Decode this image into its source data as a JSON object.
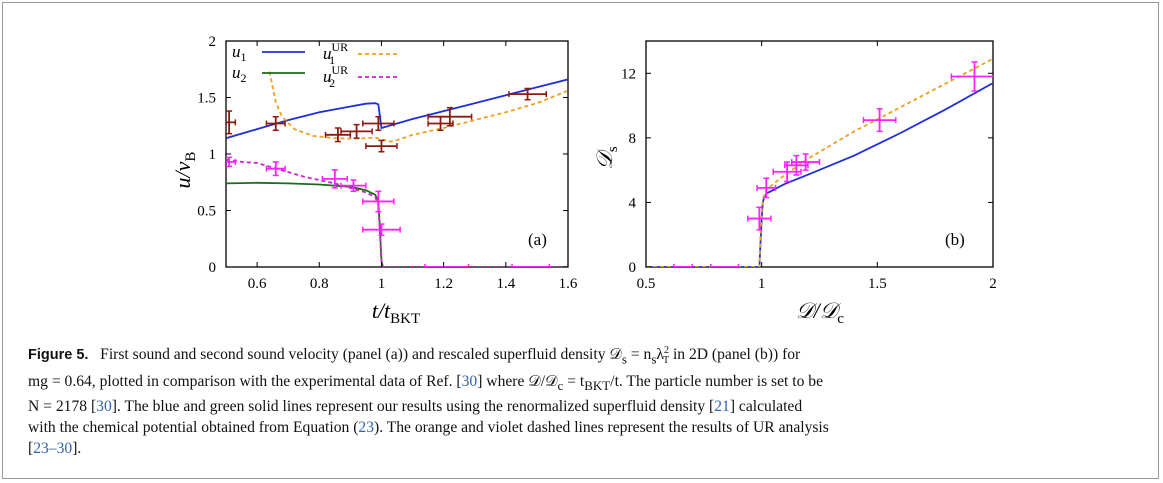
{
  "caption": {
    "figure_label": "Figure 5.",
    "line1_a": "First sound and second sound velocity (panel (a)) and rescaled superfluid density 𝒟",
    "line1_sub": "s",
    "line1_b": " = n",
    "line1_c": "λ",
    "line1_sup": "2",
    "line1_sub2": "T",
    "line1_d": " in 2D (panel (b)) for",
    "line2_a": "mg = 0.64, plotted in comparison with the experimental data of Ref. [",
    "ref30a": "30",
    "line2_b": "] where 𝒟/𝒟",
    "line2_c": " = t",
    "line2_sub": "BKT",
    "line2_d": "/t. The particle number is set to be",
    "line3_a": "N = 2178 [",
    "ref30b": "30",
    "line3_b": "]. The blue and green solid lines represent our results using the renormalized superfluid density [",
    "ref21": "21",
    "line3_c": "] calculated",
    "line4_a": "with the chemical potential obtained from Equation (",
    "ref23": "23",
    "line4_b": "). The orange and violet dashed lines represent the results of UR analysis",
    "line5_a": "[",
    "ref2330": "23–30",
    "line5_b": "]."
  },
  "colors": {
    "blue": "#1f2fd8",
    "green": "#1a6e1a",
    "orange": "#f0a020",
    "violet": "#d020d0",
    "darkred": "#8b1a10",
    "magenta": "#ff22ff"
  },
  "chart_data": [
    {
      "panel": "(a)",
      "type": "line",
      "xlabel": "t/t_BKT",
      "ylabel": "u/v_B",
      "xlim": [
        0.5,
        1.6
      ],
      "ylim": [
        0,
        2
      ],
      "xticks": [
        "0.6",
        "0.8",
        "1",
        "1.2",
        "1.4",
        "1.6"
      ],
      "yticks": [
        "0",
        "0.5",
        "1",
        "1.5",
        "2"
      ],
      "legend": [
        {
          "name": "u1",
          "style": "solid",
          "color": "blue"
        },
        {
          "name": "u2",
          "style": "solid",
          "color": "green"
        },
        {
          "name": "u1^UR",
          "style": "dashed",
          "color": "orange"
        },
        {
          "name": "u2^UR",
          "style": "dashed",
          "color": "violet"
        }
      ],
      "series": [
        {
          "name": "u1",
          "color": "blue",
          "dash": false,
          "points": [
            [
              0.5,
              1.14
            ],
            [
              0.6,
              1.22
            ],
            [
              0.7,
              1.3
            ],
            [
              0.8,
              1.37
            ],
            [
              0.9,
              1.42
            ],
            [
              0.95,
              1.445
            ],
            [
              0.98,
              1.45
            ],
            [
              0.99,
              1.44
            ],
            [
              1.0,
              1.23
            ],
            [
              1.1,
              1.31
            ],
            [
              1.2,
              1.38
            ],
            [
              1.3,
              1.45
            ],
            [
              1.4,
              1.52
            ],
            [
              1.5,
              1.59
            ],
            [
              1.6,
              1.66
            ]
          ]
        },
        {
          "name": "u2",
          "color": "green",
          "dash": false,
          "points": [
            [
              0.5,
              0.74
            ],
            [
              0.6,
              0.745
            ],
            [
              0.7,
              0.74
            ],
            [
              0.8,
              0.73
            ],
            [
              0.9,
              0.71
            ],
            [
              0.95,
              0.68
            ],
            [
              0.98,
              0.64
            ],
            [
              0.99,
              0.58
            ],
            [
              0.995,
              0.35
            ],
            [
              1.0,
              0.05
            ],
            [
              1.005,
              0.0
            ],
            [
              1.6,
              0.0
            ]
          ]
        },
        {
          "name": "u1^UR",
          "color": "orange",
          "dash": true,
          "points": [
            [
              0.64,
              1.73
            ],
            [
              0.66,
              1.46
            ],
            [
              0.68,
              1.33
            ],
            [
              0.72,
              1.22
            ],
            [
              0.78,
              1.16
            ],
            [
              0.85,
              1.14
            ],
            [
              0.9,
              1.135
            ],
            [
              0.95,
              1.14
            ],
            [
              0.98,
              1.145
            ],
            [
              1.0,
              1.13
            ],
            [
              1.03,
              1.11
            ],
            [
              1.06,
              1.13
            ],
            [
              1.1,
              1.17
            ],
            [
              1.2,
              1.23
            ],
            [
              1.3,
              1.3
            ],
            [
              1.4,
              1.37
            ],
            [
              1.5,
              1.45
            ],
            [
              1.6,
              1.56
            ]
          ]
        },
        {
          "name": "u2^UR",
          "color": "violet",
          "dash": true,
          "points": [
            [
              0.5,
              0.95
            ],
            [
              0.55,
              0.93
            ],
            [
              0.6,
              0.92
            ],
            [
              0.65,
              0.88
            ],
            [
              0.7,
              0.84
            ],
            [
              0.75,
              0.8
            ],
            [
              0.8,
              0.77
            ],
            [
              0.85,
              0.74
            ],
            [
              0.9,
              0.7
            ],
            [
              0.95,
              0.66
            ],
            [
              0.98,
              0.62
            ],
            [
              0.99,
              0.55
            ],
            [
              0.995,
              0.3
            ],
            [
              1.0,
              0.05
            ],
            [
              1.005,
              0.0
            ],
            [
              1.6,
              0.0
            ]
          ]
        }
      ],
      "experiment": [
        {
          "set": "first_sound",
          "color": "darkred",
          "points": [
            {
              "x": 0.51,
              "y": 1.28,
              "xerr": 0.02,
              "yerr": 0.1
            },
            {
              "x": 0.66,
              "y": 1.27,
              "xerr": 0.03,
              "yerr": 0.06
            },
            {
              "x": 0.86,
              "y": 1.17,
              "xerr": 0.04,
              "yerr": 0.06
            },
            {
              "x": 0.92,
              "y": 1.2,
              "xerr": 0.05,
              "yerr": 0.06
            },
            {
              "x": 0.99,
              "y": 1.27,
              "xerr": 0.05,
              "yerr": 0.06
            },
            {
              "x": 1.0,
              "y": 1.07,
              "xerr": 0.05,
              "yerr": 0.05
            },
            {
              "x": 1.19,
              "y": 1.27,
              "xerr": 0.04,
              "yerr": 0.06
            },
            {
              "x": 1.22,
              "y": 1.33,
              "xerr": 0.07,
              "yerr": 0.08
            },
            {
              "x": 1.47,
              "y": 1.53,
              "xerr": 0.06,
              "yerr": 0.05
            }
          ]
        },
        {
          "set": "second_sound",
          "color": "magenta",
          "points": [
            {
              "x": 0.51,
              "y": 0.93,
              "xerr": 0.02,
              "yerr": 0.04
            },
            {
              "x": 0.66,
              "y": 0.87,
              "xerr": 0.03,
              "yerr": 0.06
            },
            {
              "x": 0.85,
              "y": 0.78,
              "xerr": 0.04,
              "yerr": 0.08
            },
            {
              "x": 0.91,
              "y": 0.72,
              "xerr": 0.04,
              "yerr": 0.05
            },
            {
              "x": 0.99,
              "y": 0.58,
              "xerr": 0.05,
              "yerr": 0.09
            },
            {
              "x": 1.0,
              "y": 0.33,
              "xerr": 0.06,
              "yerr": 0.05
            },
            {
              "x": 1.21,
              "y": 0.0,
              "xerr": 0.07,
              "yerr": 0.0
            },
            {
              "x": 1.48,
              "y": 0.0,
              "xerr": 0.06,
              "yerr": 0.0
            }
          ]
        }
      ]
    },
    {
      "panel": "(b)",
      "type": "line",
      "xlabel": "𝒟/𝒟c",
      "ylabel": "𝒟s",
      "xlim": [
        0.5,
        2
      ],
      "ylim": [
        0,
        14
      ],
      "xticks": [
        "0.5",
        "1",
        "1.5",
        "2"
      ],
      "yticks": [
        "0",
        "4",
        "8",
        "12"
      ],
      "series": [
        {
          "name": "renormalized",
          "color": "blue",
          "dash": false,
          "points": [
            [
              0.5,
              0.0
            ],
            [
              0.99,
              0.0
            ],
            [
              0.995,
              1.5
            ],
            [
              1.0,
              3.0
            ],
            [
              1.005,
              4.0
            ],
            [
              1.01,
              4.3
            ],
            [
              1.02,
              4.55
            ],
            [
              1.1,
              5.15
            ],
            [
              1.2,
              5.72
            ],
            [
              1.4,
              6.9
            ],
            [
              1.6,
              8.3
            ],
            [
              1.8,
              9.8
            ],
            [
              2.0,
              11.4
            ]
          ]
        },
        {
          "name": "UR",
          "color": "orange",
          "dash": true,
          "points": [
            [
              0.5,
              0.0
            ],
            [
              0.99,
              0.0
            ],
            [
              0.995,
              2.0
            ],
            [
              1.0,
              3.4
            ],
            [
              1.005,
              4.2
            ],
            [
              1.02,
              4.8
            ],
            [
              1.1,
              5.7
            ],
            [
              1.2,
              6.7
            ],
            [
              1.4,
              8.4
            ],
            [
              1.6,
              9.9
            ],
            [
              1.8,
              11.4
            ],
            [
              2.0,
              12.9
            ]
          ]
        }
      ],
      "experiment": [
        {
          "set": "density",
          "color": "magenta",
          "points": [
            {
              "x": 0.66,
              "y": 0.0,
              "xerr": 0.04,
              "yerr": 0.0
            },
            {
              "x": 0.84,
              "y": 0.0,
              "xerr": 0.06,
              "yerr": 0.0
            },
            {
              "x": 0.99,
              "y": 3.0,
              "xerr": 0.05,
              "yerr": 0.7
            },
            {
              "x": 1.02,
              "y": 4.9,
              "xerr": 0.04,
              "yerr": 0.6
            },
            {
              "x": 1.11,
              "y": 5.9,
              "xerr": 0.06,
              "yerr": 0.6
            },
            {
              "x": 1.15,
              "y": 6.3,
              "xerr": 0.05,
              "yerr": 0.6
            },
            {
              "x": 1.19,
              "y": 6.5,
              "xerr": 0.06,
              "yerr": 0.5
            },
            {
              "x": 1.51,
              "y": 9.1,
              "xerr": 0.07,
              "yerr": 0.7
            },
            {
              "x": 1.92,
              "y": 11.8,
              "xerr": 0.1,
              "yerr": 0.9
            }
          ]
        }
      ]
    }
  ]
}
